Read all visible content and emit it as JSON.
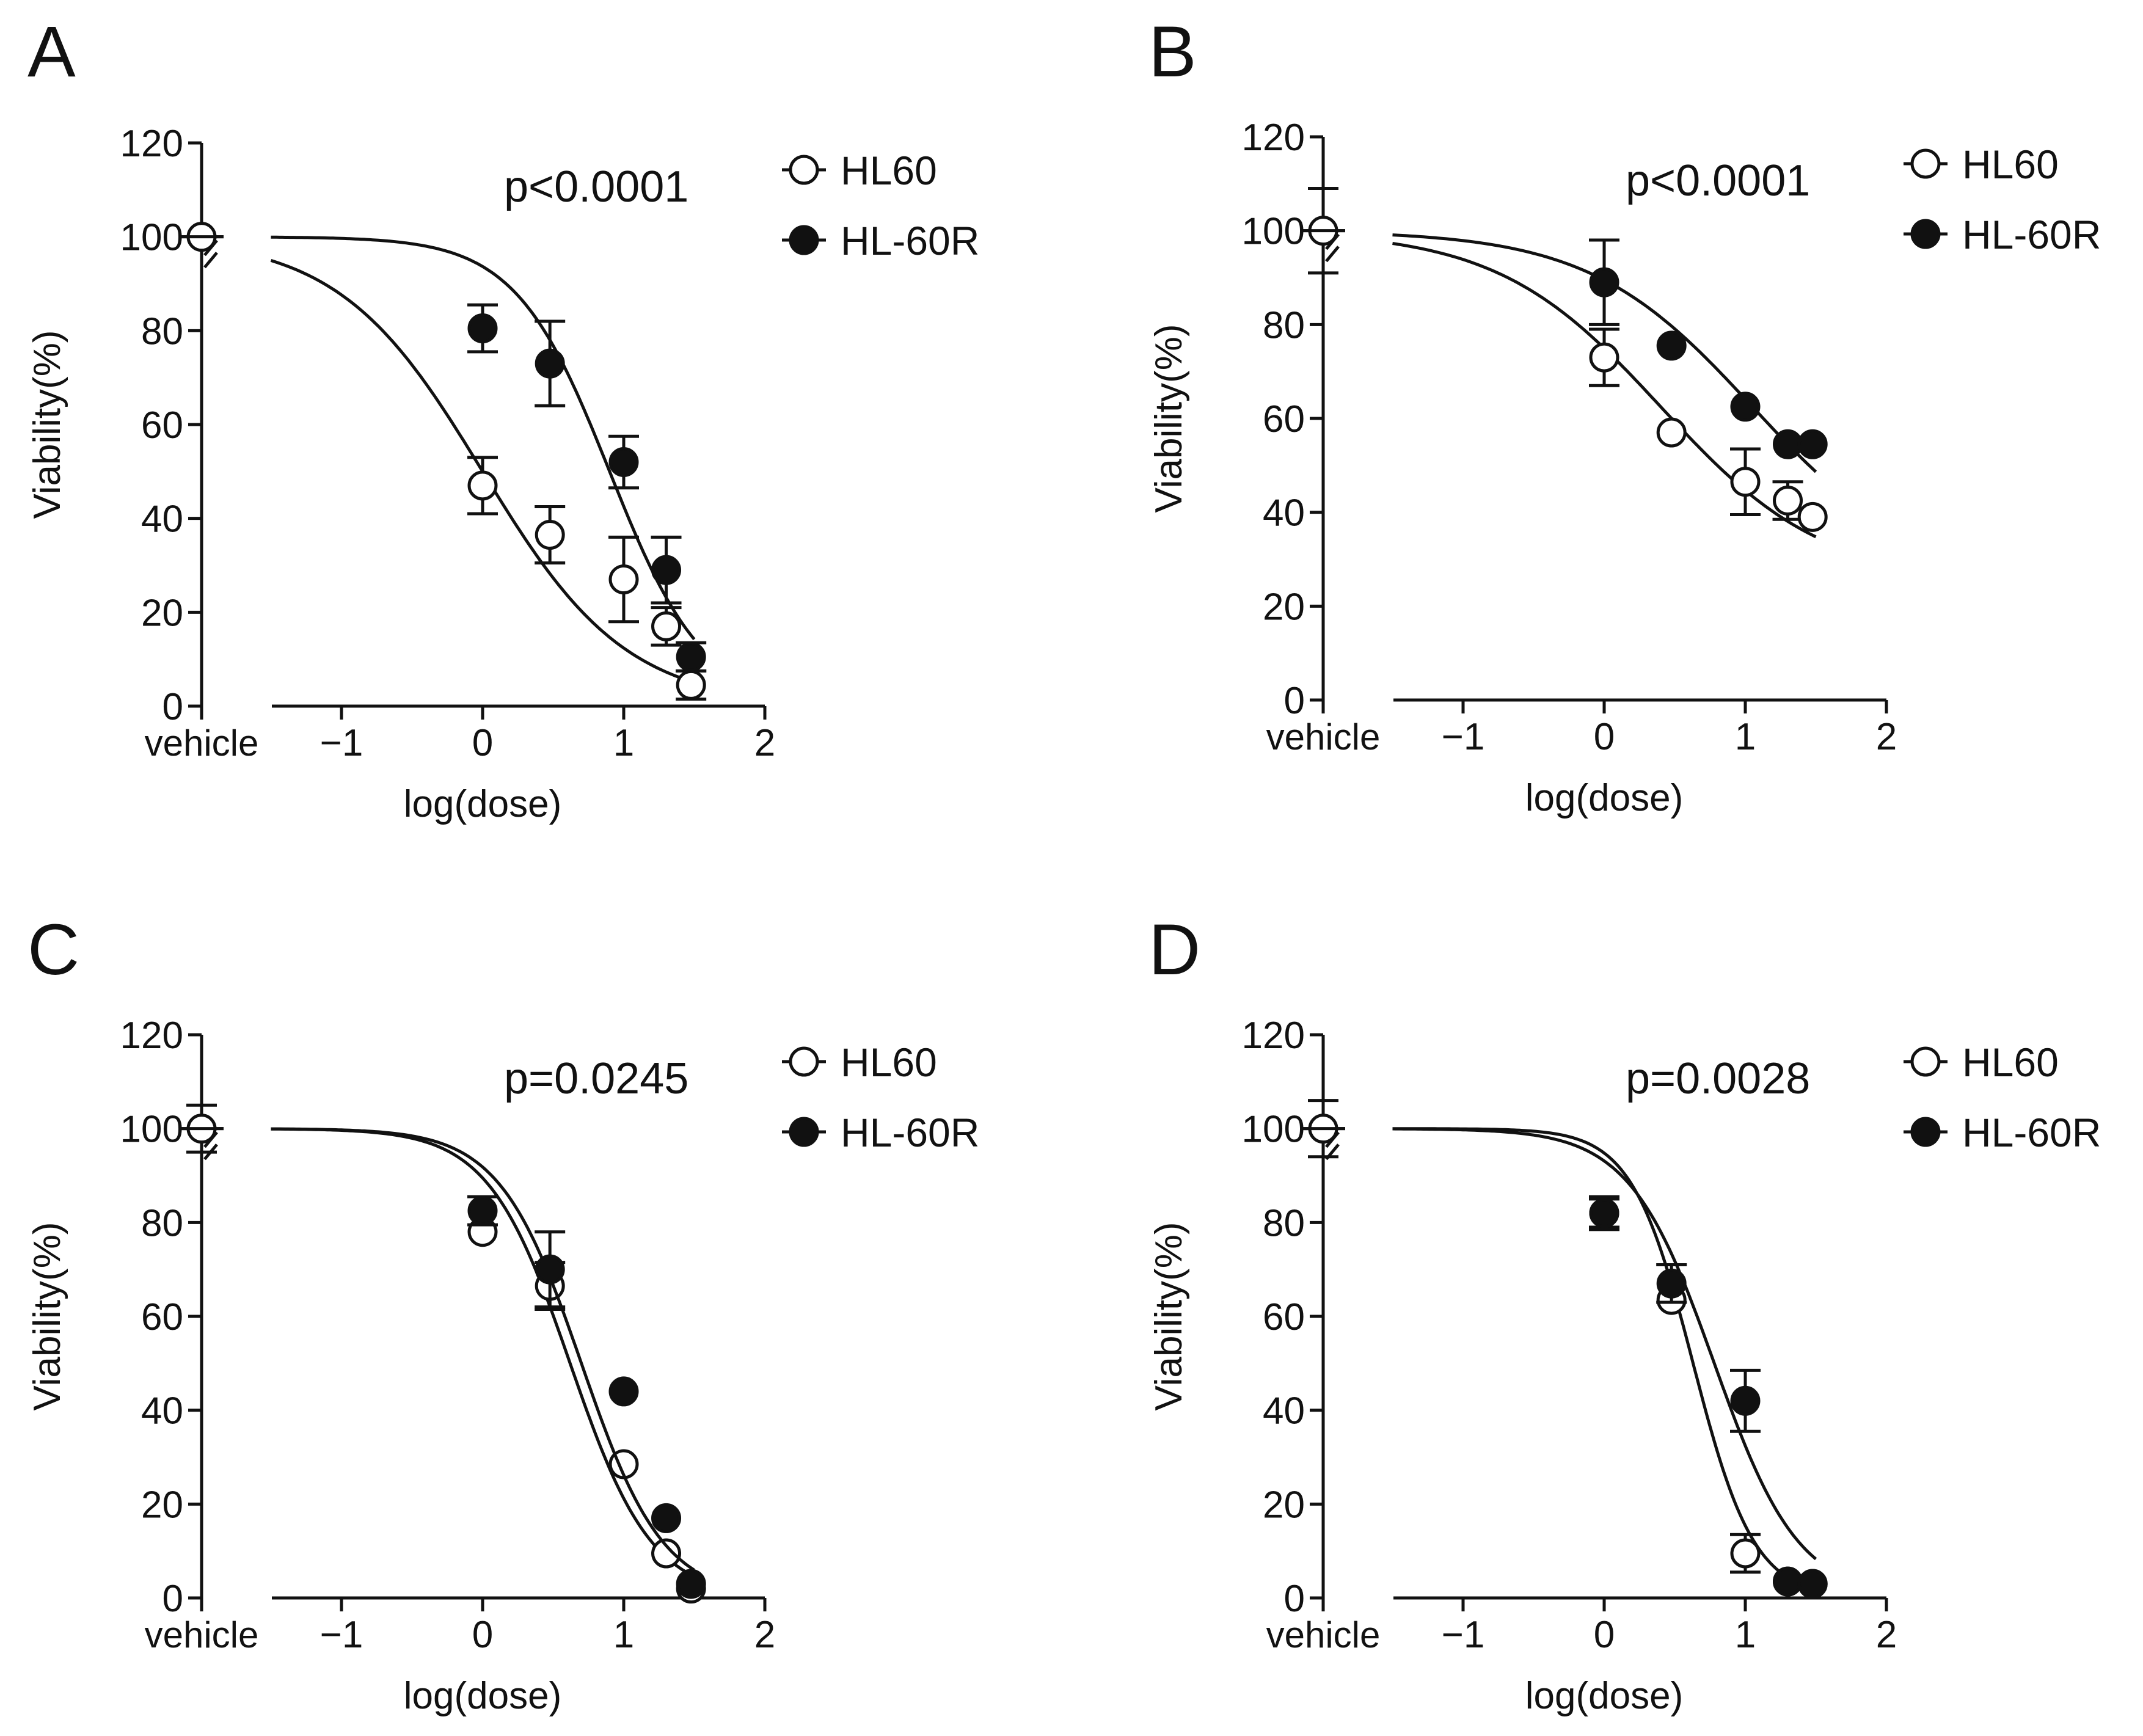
{
  "panels": [
    {
      "letter": "A",
      "pvalue": "p<0.0001"
    },
    {
      "letter": "B",
      "pvalue": "p<0.0001"
    },
    {
      "letter": "C",
      "pvalue": "p=0.0245"
    },
    {
      "letter": "D",
      "pvalue": "p=0.0028"
    }
  ],
  "axis": {
    "xlabel": "log(dose)",
    "ylabel": "Viability(%)",
    "vehicle_label": "vehicle",
    "x_ticks": [
      "−1",
      "0",
      "1",
      "2"
    ],
    "y_ticks": [
      "0",
      "20",
      "40",
      "60",
      "80",
      "100",
      "120"
    ]
  },
  "legend": {
    "open": "HL60",
    "filled": "HL-60R"
  },
  "colors": {
    "ink": "#111111",
    "open_fill": "#ffffff",
    "filled_fill": "#111111"
  },
  "chart_data": [
    {
      "type": "scatter",
      "title": "A",
      "annotation": "p<0.0001",
      "xlabel": "log(dose)",
      "ylabel": "Viability(%)",
      "xlim": [
        -1.5,
        2
      ],
      "ylim": [
        0,
        120
      ],
      "series": [
        {
          "name": "HL60",
          "marker": "open",
          "vehicle": {
            "y": 100
          },
          "x": [
            0,
            0.477,
            1,
            1.301,
            1.477
          ],
          "y": [
            47,
            36.5,
            27,
            17,
            4.5
          ],
          "err": [
            6,
            6,
            9,
            4,
            3
          ],
          "fit": {
            "bottom": 0,
            "top": 100,
            "logIC50": 0,
            "hill": 0.85
          }
        },
        {
          "name": "HL-60R",
          "marker": "filled",
          "vehicle": {
            "y": 100
          },
          "x": [
            0,
            0.477,
            1,
            1.301,
            1.477
          ],
          "y": [
            80.5,
            73,
            52,
            29,
            10.5
          ],
          "err": [
            5,
            9,
            5.5,
            7,
            3
          ],
          "fit": {
            "bottom": 0,
            "top": 100,
            "logIC50": 0.9,
            "hill": 1.3
          }
        }
      ]
    },
    {
      "type": "scatter",
      "title": "B",
      "annotation": "p<0.0001",
      "xlabel": "log(dose)",
      "ylabel": "Viability(%)",
      "xlim": [
        -1.5,
        2
      ],
      "ylim": [
        0,
        120
      ],
      "series": [
        {
          "name": "HL60",
          "marker": "open",
          "vehicle": {
            "y": 100,
            "err": 9
          },
          "x": [
            0,
            0.477,
            1,
            1.301,
            1.477
          ],
          "y": [
            73,
            57,
            46.5,
            42.5,
            39
          ],
          "err": [
            6,
            0,
            7,
            4,
            0
          ],
          "fit": {
            "bottom": 25,
            "top": 100,
            "logIC50": 0.4,
            "hill": 0.75
          }
        },
        {
          "name": "HL-60R",
          "marker": "filled",
          "vehicle": {
            "y": 100
          },
          "x": [
            0,
            0.477,
            1,
            1.301,
            1.477
          ],
          "y": [
            89,
            75.5,
            62.5,
            54.5,
            54.5
          ],
          "err": [
            9,
            0,
            0,
            0,
            0
          ],
          "fit": {
            "bottom": 25,
            "top": 100,
            "logIC50": 1.05,
            "hill": 0.75
          }
        }
      ]
    },
    {
      "type": "scatter",
      "title": "C",
      "annotation": "p=0.0245",
      "xlabel": "log(dose)",
      "ylabel": "Viability(%)",
      "xlim": [
        -1.5,
        2
      ],
      "ylim": [
        0,
        120
      ],
      "series": [
        {
          "name": "HL60",
          "marker": "open",
          "vehicle": {
            "y": 100,
            "err": 5
          },
          "x": [
            0,
            0.477,
            1,
            1.301,
            1.477
          ],
          "y": [
            78,
            66.5,
            28.5,
            9.5,
            2
          ],
          "err": [
            0,
            5,
            0,
            0,
            0
          ],
          "fit": {
            "bottom": 0,
            "top": 100,
            "logIC50": 0.62,
            "hill": 1.5
          }
        },
        {
          "name": "HL-60R",
          "marker": "filled",
          "vehicle": {
            "y": 100
          },
          "x": [
            0,
            0.477,
            1,
            1.301,
            1.477
          ],
          "y": [
            82.5,
            70,
            44,
            17,
            3
          ],
          "err": [
            3,
            8,
            0,
            0,
            0
          ],
          "fit": {
            "bottom": 0,
            "top": 100,
            "logIC50": 0.7,
            "hill": 1.5
          }
        }
      ]
    },
    {
      "type": "scatter",
      "title": "D",
      "annotation": "p=0.0028",
      "xlabel": "log(dose)",
      "ylabel": "Viability(%)",
      "xlim": [
        -1.5,
        2
      ],
      "ylim": [
        0,
        120
      ],
      "series": [
        {
          "name": "HL60",
          "marker": "open",
          "vehicle": {
            "y": 100,
            "err": 6
          },
          "x": [
            0,
            0.477,
            1,
            1.301,
            1.477
          ],
          "y": [
            82,
            63.5,
            9.5,
            3.5,
            3
          ],
          "err": [
            3,
            0,
            4,
            0,
            0
          ],
          "fit": {
            "bottom": 0,
            "top": 100,
            "logIC50": 0.63,
            "hill": 2.0
          }
        },
        {
          "name": "HL-60R",
          "marker": "filled",
          "vehicle": {
            "y": 100
          },
          "x": [
            0,
            0.477,
            1,
            1.301,
            1.477
          ],
          "y": [
            82,
            67,
            42,
            3.5,
            3
          ],
          "err": [
            3.5,
            4,
            6.5,
            0,
            0
          ],
          "fit": {
            "bottom": 0,
            "top": 100,
            "logIC50": 0.78,
            "hill": 1.45
          }
        }
      ]
    }
  ]
}
